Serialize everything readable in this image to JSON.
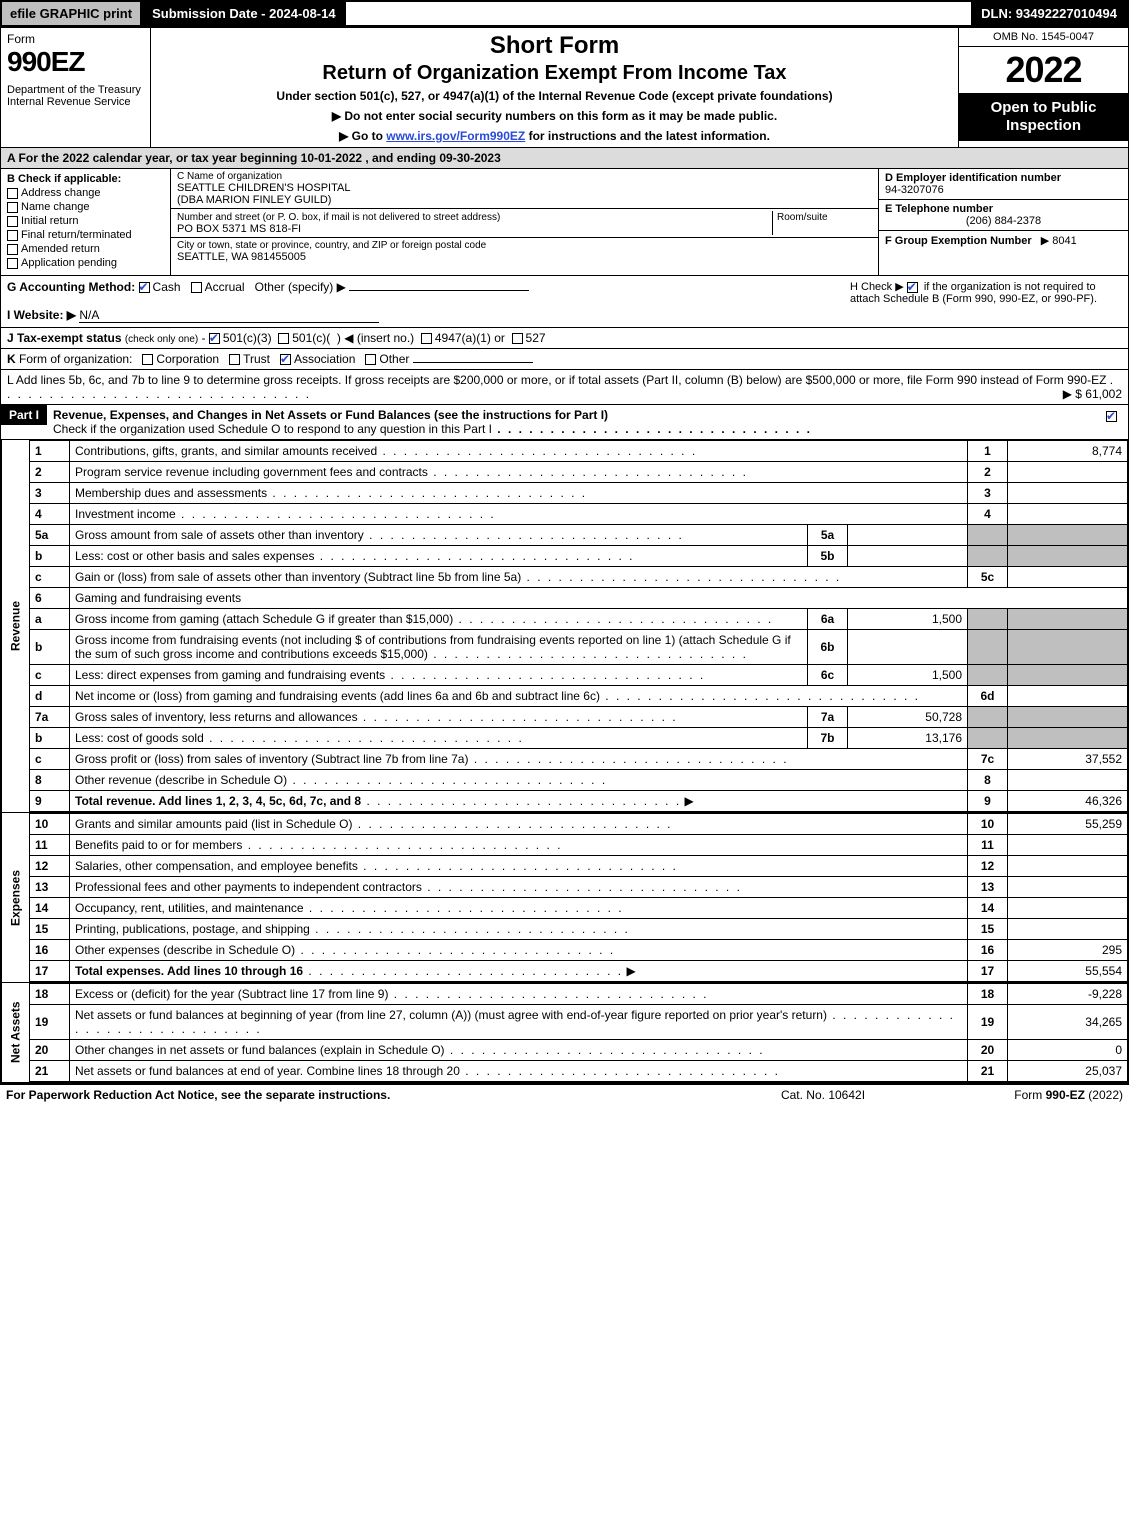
{
  "topbar": {
    "efile": "efile GRAPHIC print",
    "submission_label": "Submission Date - 2024-08-14",
    "dln": "DLN: 93492227010494"
  },
  "header": {
    "form_word": "Form",
    "form_no": "990EZ",
    "dept": "Department of the Treasury\nInternal Revenue Service",
    "short": "Short Form",
    "title": "Return of Organization Exempt From Income Tax",
    "subtitle": "Under section 501(c), 527, or 4947(a)(1) of the Internal Revenue Code (except private foundations)",
    "note1": "▶ Do not enter social security numbers on this form as it may be made public.",
    "note2_pre": "▶ Go to ",
    "note2_link": "www.irs.gov/Form990EZ",
    "note2_post": " for instructions and the latest information.",
    "omb": "OMB No. 1545-0047",
    "year": "2022",
    "open": "Open to Public Inspection"
  },
  "sectionA": "A  For the 2022 calendar year, or tax year beginning 10-01-2022 , and ending 09-30-2023",
  "boxB": {
    "header": "B  Check if applicable:",
    "opts": [
      "Address change",
      "Name change",
      "Initial return",
      "Final return/terminated",
      "Amended return",
      "Application pending"
    ]
  },
  "boxC": {
    "name_lbl": "C Name of organization",
    "name": "SEATTLE CHILDREN'S HOSPITAL",
    "dba": "(DBA MARION FINLEY GUILD)",
    "addr_lbl": "Number and street (or P. O. box, if mail is not delivered to street address)",
    "room_lbl": "Room/suite",
    "addr": "PO BOX 5371 MS 818-FI",
    "city_lbl": "City or town, state or province, country, and ZIP or foreign postal code",
    "city": "SEATTLE, WA  981455005"
  },
  "boxD": {
    "ein_lbl": "D Employer identification number",
    "ein": "94-3207076",
    "tel_lbl": "E Telephone number",
    "tel": "(206) 884-2378",
    "grp_lbl": "F Group Exemption Number",
    "grp": "▶ 8041"
  },
  "gline": {
    "label": "G Accounting Method:",
    "opts": [
      "Cash",
      "Accrual",
      "Other (specify) ▶"
    ],
    "checked": 0
  },
  "hbox": {
    "text1": "H  Check ▶",
    "text2": "if the organization is not required to attach Schedule B (Form 990, 990-EZ, or 990-PF).",
    "checked": true
  },
  "iline": {
    "label": "I Website: ▶",
    "value": "N/A"
  },
  "jline": "J Tax-exempt status (check only one) - ☑ 501(c)(3)  ◯ 501(c)(  ) ◀ (insert no.)  ◯ 4947(a)(1) or  ◯ 527",
  "kline": "K Form of organization:   ◯ Corporation   ◯ Trust   ☑ Association   ◯ Other",
  "lline": {
    "text": "L Add lines 5b, 6c, and 7b to line 9 to determine gross receipts. If gross receipts are $200,000 or more, or if total assets (Part II, column (B) below) are $500,000 or more, file Form 990 instead of Form 990-EZ",
    "arrow": "▶ $ 61,002"
  },
  "part1": {
    "label": "Part I",
    "title": "Revenue, Expenses, and Changes in Net Assets or Fund Balances (see the instructions for Part I)",
    "subtitle": "Check if the organization used Schedule O to respond to any question in this Part I",
    "checked": true
  },
  "side_labels": {
    "rev": "Revenue",
    "exp": "Expenses",
    "net": "Net Assets"
  },
  "lines": [
    {
      "n": "1",
      "desc": "Contributions, gifts, grants, and similar amounts received",
      "box": "1",
      "amt": "8,774"
    },
    {
      "n": "2",
      "desc": "Program service revenue including government fees and contracts",
      "box": "2",
      "amt": ""
    },
    {
      "n": "3",
      "desc": "Membership dues and assessments",
      "box": "3",
      "amt": ""
    },
    {
      "n": "4",
      "desc": "Investment income",
      "box": "4",
      "amt": ""
    },
    {
      "n": "5a",
      "desc": "Gross amount from sale of assets other than inventory",
      "mid": "5a",
      "midamt": ""
    },
    {
      "n": "b",
      "desc": "Less: cost or other basis and sales expenses",
      "mid": "5b",
      "midamt": ""
    },
    {
      "n": "c",
      "desc": "Gain or (loss) from sale of assets other than inventory (Subtract line 5b from line 5a)",
      "box": "5c",
      "amt": ""
    },
    {
      "n": "6",
      "desc": "Gaming and fundraising events",
      "plain": true
    },
    {
      "n": "a",
      "desc": "Gross income from gaming (attach Schedule G if greater than $15,000)",
      "mid": "6a",
      "midamt": "1,500"
    },
    {
      "n": "b",
      "desc": "Gross income from fundraising events (not including $                    of contributions from fundraising events reported on line 1) (attach Schedule G if the sum of such gross income and contributions exceeds $15,000)",
      "mid": "6b",
      "midamt": ""
    },
    {
      "n": "c",
      "desc": "Less: direct expenses from gaming and fundraising events",
      "mid": "6c",
      "midamt": "1,500"
    },
    {
      "n": "d",
      "desc": "Net income or (loss) from gaming and fundraising events (add lines 6a and 6b and subtract line 6c)",
      "box": "6d",
      "amt": ""
    },
    {
      "n": "7a",
      "desc": "Gross sales of inventory, less returns and allowances",
      "mid": "7a",
      "midamt": "50,728"
    },
    {
      "n": "b",
      "desc": "Less: cost of goods sold",
      "mid": "7b",
      "midamt": "13,176"
    },
    {
      "n": "c",
      "desc": "Gross profit or (loss) from sales of inventory (Subtract line 7b from line 7a)",
      "box": "7c",
      "amt": "37,552"
    },
    {
      "n": "8",
      "desc": "Other revenue (describe in Schedule O)",
      "box": "8",
      "amt": ""
    },
    {
      "n": "9",
      "desc": "Total revenue. Add lines 1, 2, 3, 4, 5c, 6d, 7c, and 8",
      "box": "9",
      "amt": "46,326",
      "bold": true,
      "arrow": true
    }
  ],
  "exp_lines": [
    {
      "n": "10",
      "desc": "Grants and similar amounts paid (list in Schedule O)",
      "box": "10",
      "amt": "55,259"
    },
    {
      "n": "11",
      "desc": "Benefits paid to or for members",
      "box": "11",
      "amt": ""
    },
    {
      "n": "12",
      "desc": "Salaries, other compensation, and employee benefits",
      "box": "12",
      "amt": ""
    },
    {
      "n": "13",
      "desc": "Professional fees and other payments to independent contractors",
      "box": "13",
      "amt": ""
    },
    {
      "n": "14",
      "desc": "Occupancy, rent, utilities, and maintenance",
      "box": "14",
      "amt": ""
    },
    {
      "n": "15",
      "desc": "Printing, publications, postage, and shipping",
      "box": "15",
      "amt": ""
    },
    {
      "n": "16",
      "desc": "Other expenses (describe in Schedule O)",
      "box": "16",
      "amt": "295"
    },
    {
      "n": "17",
      "desc": "Total expenses. Add lines 10 through 16",
      "box": "17",
      "amt": "55,554",
      "bold": true,
      "arrow": true
    }
  ],
  "net_lines": [
    {
      "n": "18",
      "desc": "Excess or (deficit) for the year (Subtract line 17 from line 9)",
      "box": "18",
      "amt": "-9,228"
    },
    {
      "n": "19",
      "desc": "Net assets or fund balances at beginning of year (from line 27, column (A)) (must agree with end-of-year figure reported on prior year's return)",
      "box": "19",
      "amt": "34,265"
    },
    {
      "n": "20",
      "desc": "Other changes in net assets or fund balances (explain in Schedule O)",
      "box": "20",
      "amt": "0"
    },
    {
      "n": "21",
      "desc": "Net assets or fund balances at end of year. Combine lines 18 through 20",
      "box": "21",
      "amt": "25,037"
    }
  ],
  "footer": {
    "left": "For Paperwork Reduction Act Notice, see the separate instructions.",
    "mid": "Cat. No. 10642I",
    "right": "Form 990-EZ (2022)"
  }
}
